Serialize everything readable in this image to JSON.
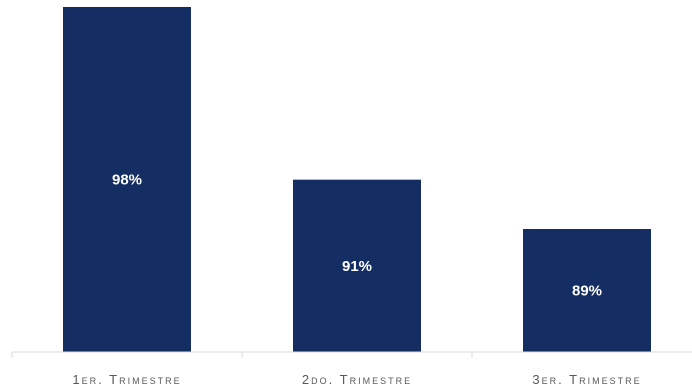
{
  "chart_data": {
    "type": "bar",
    "categories": [
      "1er. Trimestre",
      "2do. Trimestre",
      "3er. Trimestre"
    ],
    "values": [
      98,
      91,
      89
    ],
    "value_labels": [
      "98%",
      "91%",
      "89%"
    ],
    "ylim": [
      85,
      98
    ],
    "grid": false,
    "legend": "none",
    "colors": {
      "bar": "#142D63",
      "axis": "#D9D9D9",
      "category_text": "#595959",
      "data_label_text": "#FFFFFF"
    }
  }
}
